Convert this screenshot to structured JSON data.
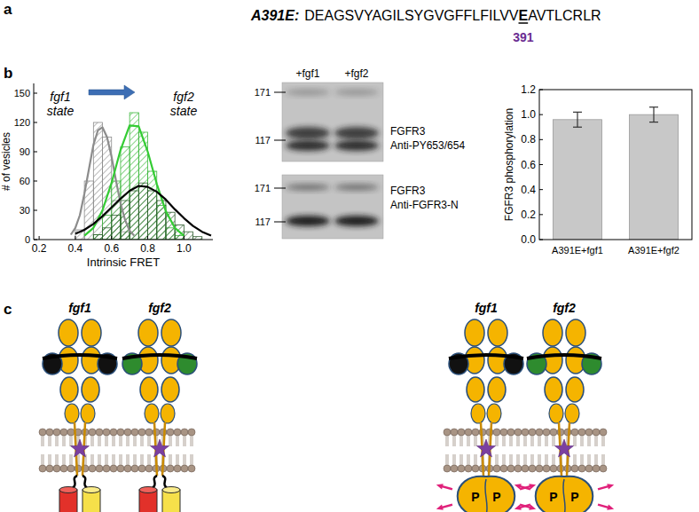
{
  "panel_labels": [
    "a",
    "b",
    "c"
  ],
  "sequence": {
    "label": "A391E:",
    "before": "DEAGSVYAGILSYGVGFFLFILVV",
    "mutation": "E",
    "after": "AVTLCRLR",
    "position": 391
  },
  "chart_data": [
    {
      "type": "histogram",
      "x_label": "Intrinsic FRET",
      "y_label": "# of vesicles",
      "xlim": [
        0.17,
        1.16
      ],
      "xticks": [
        0.2,
        0.4,
        0.6,
        0.8,
        {
          "value": 1,
          "label": "1.0"
        }
      ],
      "ylim": [
        0,
        160
      ],
      "yticks": [
        0,
        30,
        60,
        90,
        120,
        150
      ],
      "annotations": [
        "fgf1 state",
        "fgf2 state"
      ],
      "series": [
        {
          "color": "#8c8c8c",
          "bins": [
            0.4,
            0.45,
            0.5,
            0.55,
            0.6,
            0.65,
            0.7
          ],
          "values": [
            10,
            60,
            120,
            105,
            40,
            8
          ]
        },
        {
          "color": "#3cb83c",
          "bins": [
            0.5,
            0.55,
            0.6,
            0.65,
            0.7,
            0.75,
            0.8,
            0.85,
            0.9,
            0.95,
            1.0
          ],
          "values": [
            5,
            25,
            60,
            95,
            130,
            110,
            70,
            35,
            12,
            4
          ]
        },
        {
          "color": "#2f5e2f",
          "bins": [
            0.5,
            0.55,
            0.6,
            0.65,
            0.7,
            0.75,
            0.8,
            0.85,
            0.9,
            0.95,
            1.0,
            1.05,
            1.1
          ],
          "values": [
            5,
            12,
            25,
            40,
            50,
            58,
            50,
            40,
            28,
            15,
            8,
            3
          ]
        },
        {
          "type": "line",
          "color": "#8c8c8c",
          "x": [
            0.375,
            0.4,
            0.425,
            0.45,
            0.475,
            0.5,
            0.525,
            0.55,
            0.575,
            0.6,
            0.625,
            0.65,
            0.675,
            0.7,
            0.725
          ],
          "values": [
            5,
            12,
            25,
            47,
            72,
            97,
            112,
            115,
            105,
            85,
            60,
            37,
            20,
            9,
            4
          ]
        },
        {
          "type": "line",
          "color": "#33cc33",
          "x": [
            0.45,
            0.5,
            0.55,
            0.6,
            0.65,
            0.7,
            0.75,
            0.8,
            0.85,
            0.9,
            0.95,
            1.0
          ],
          "values": [
            4,
            12,
            30,
            58,
            92,
            117,
            116,
            90,
            57,
            29,
            12,
            4
          ]
        },
        {
          "type": "line",
          "color": "#000000",
          "x": [
            0.4,
            0.45,
            0.5,
            0.55,
            0.6,
            0.65,
            0.7,
            0.75,
            0.8,
            0.85,
            0.9,
            0.95,
            1.0,
            1.05,
            1.1,
            1.15
          ],
          "values": [
            6,
            10,
            16,
            24,
            33,
            42,
            50,
            55,
            54,
            49,
            41,
            31,
            22,
            14,
            8,
            4
          ]
        }
      ]
    },
    {
      "type": "bar",
      "y_label": "FGFR3 phosphorylation",
      "categories": [
        "A391E+fgf1",
        "A391E+fgf2"
      ],
      "values": [
        0.96,
        1.0
      ],
      "errors": [
        0.06,
        0.06
      ],
      "color": "#c8c8c8",
      "ylim": [
        0,
        1.2
      ],
      "yticks": [
        {
          "value": 0,
          "label": "0.0"
        },
        0.2,
        0.4,
        0.6,
        0.8,
        {
          "value": 1,
          "label": "1.0"
        },
        1.2
      ]
    }
  ],
  "blot": {
    "lanes": [
      "+fgf1",
      "+fgf2"
    ],
    "blots": [
      {
        "markers": [
          171,
          117
        ],
        "target": "FGFR3",
        "antibody": "Anti-PY653/654"
      },
      {
        "markers": [
          171,
          117
        ],
        "target": "FGFR3",
        "antibody": "Anti-FGFR3-N"
      }
    ]
  },
  "schematic": {
    "left": [
      "fgf1",
      "fgf2"
    ],
    "right": [
      "fgf1",
      "fgf2"
    ],
    "phospho_label": "P"
  }
}
